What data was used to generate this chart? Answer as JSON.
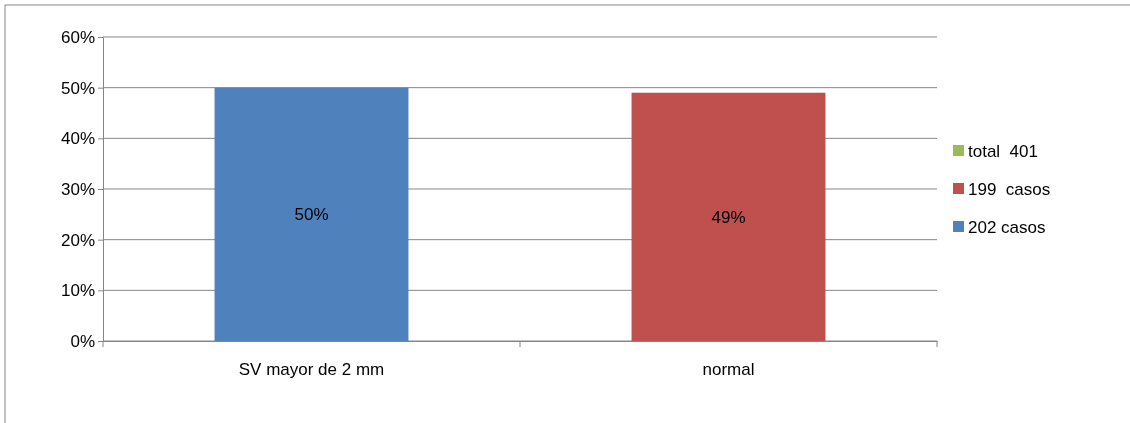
{
  "chart_data": {
    "type": "bar",
    "stacked": true,
    "categories": [
      "SV mayor de 2 mm",
      "normal"
    ],
    "series": [
      {
        "name": "202 casos",
        "color": "#4f81bd",
        "values": [
          50,
          null
        ],
        "value_labels": [
          "50%",
          null
        ]
      },
      {
        "name": "199  casos",
        "color": "#c0504d",
        "values": [
          null,
          49
        ],
        "value_labels": [
          null,
          "49%"
        ]
      },
      {
        "name": "total  401",
        "color": "#9bbb59",
        "values": [
          null,
          null
        ]
      }
    ],
    "ylim": [
      0,
      60
    ],
    "yticks": [
      {
        "value": 0,
        "label": "0%"
      },
      {
        "value": 10,
        "label": "10%"
      },
      {
        "value": 20,
        "label": "20%"
      },
      {
        "value": 30,
        "label": "30%"
      },
      {
        "value": 40,
        "label": "40%"
      },
      {
        "value": 50,
        "label": "50%"
      },
      {
        "value": 60,
        "label": "60%"
      }
    ],
    "grid": "y",
    "legend": "right"
  }
}
